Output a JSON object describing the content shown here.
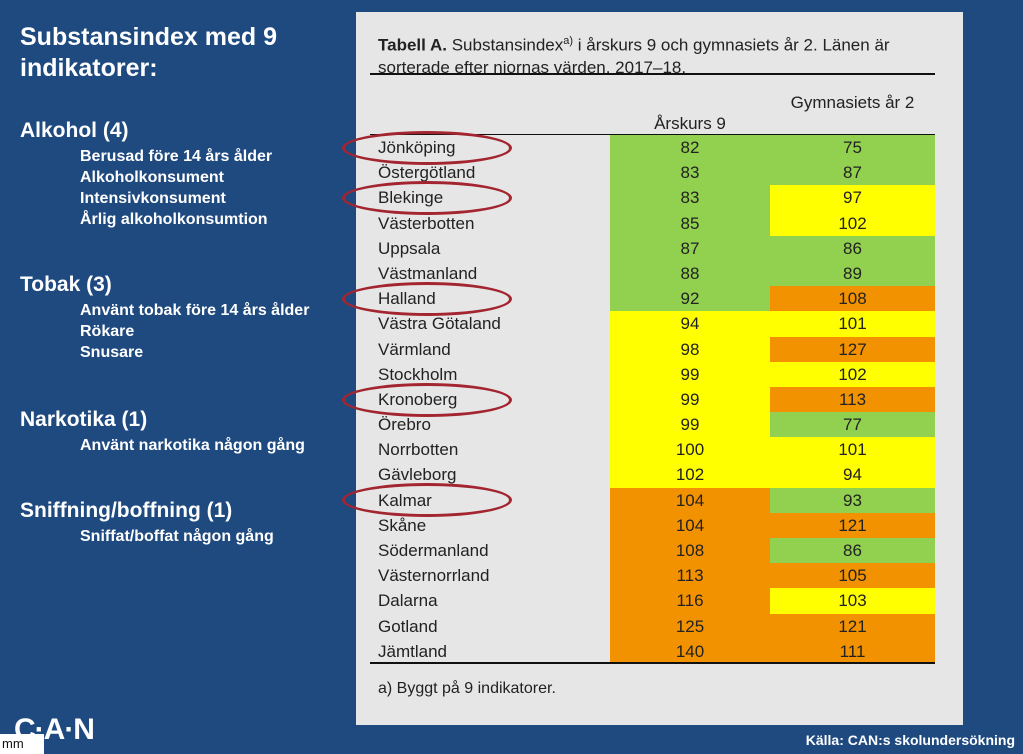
{
  "left": {
    "title": "Substansindex med 9 indikatorer:",
    "sections": [
      {
        "heading": "Alkohol (4)",
        "items": [
          "Berusad före 14 års ålder",
          "Alkoholkonsument",
          "Intensivkonsument",
          "Årlig alkoholkonsumtion"
        ]
      },
      {
        "heading": "Tobak (3)",
        "items": [
          "Använt tobak före 14 års ålder",
          "Rökare",
          "Snusare"
        ]
      },
      {
        "heading": "Narkotika (1)",
        "items": [
          "Använt narkotika någon gång"
        ]
      },
      {
        "heading": "Sniffning/boffning (1)",
        "items": [
          "Sniffat/boffat någon gång"
        ]
      }
    ]
  },
  "table": {
    "caption_bold": "Tabell A.",
    "caption_pre": "Substansindex",
    "caption_sup": "a)",
    "caption_post": " i årskurs 9 och gymnasiets år 2. Länen är sorterade efter niornas värden. 2017–18.",
    "col1_header": "Årskurs 9",
    "col2_header": "Gymnasiets år 2",
    "footnote": "a) Byggt på 9 indikatorer.",
    "colors": {
      "green": "#92d050",
      "yellow": "#ffff00",
      "orange": "#f39200"
    },
    "rows": [
      {
        "lan": "Jönköping",
        "ak9": "82",
        "gy2": "75",
        "c1": "green",
        "c2": "green",
        "circled": true
      },
      {
        "lan": "Östergötland",
        "ak9": "83",
        "gy2": "87",
        "c1": "green",
        "c2": "green",
        "circled": false
      },
      {
        "lan": "Blekinge",
        "ak9": "83",
        "gy2": "97",
        "c1": "green",
        "c2": "yellow",
        "circled": true
      },
      {
        "lan": "Västerbotten",
        "ak9": "85",
        "gy2": "102",
        "c1": "green",
        "c2": "yellow",
        "circled": false
      },
      {
        "lan": "Uppsala",
        "ak9": "87",
        "gy2": "86",
        "c1": "green",
        "c2": "green",
        "circled": false
      },
      {
        "lan": "Västmanland",
        "ak9": "88",
        "gy2": "89",
        "c1": "green",
        "c2": "green",
        "circled": false
      },
      {
        "lan": "Halland",
        "ak9": "92",
        "gy2": "108",
        "c1": "green",
        "c2": "orange",
        "circled": true
      },
      {
        "lan": "Västra Götaland",
        "ak9": "94",
        "gy2": "101",
        "c1": "yellow",
        "c2": "yellow",
        "circled": false
      },
      {
        "lan": "Värmland",
        "ak9": "98",
        "gy2": "127",
        "c1": "yellow",
        "c2": "orange",
        "circled": false
      },
      {
        "lan": "Stockholm",
        "ak9": "99",
        "gy2": "102",
        "c1": "yellow",
        "c2": "yellow",
        "circled": false
      },
      {
        "lan": "Kronoberg",
        "ak9": "99",
        "gy2": "113",
        "c1": "yellow",
        "c2": "orange",
        "circled": true
      },
      {
        "lan": "Örebro",
        "ak9": "99",
        "gy2": "77",
        "c1": "yellow",
        "c2": "green",
        "circled": false
      },
      {
        "lan": "Norrbotten",
        "ak9": "100",
        "gy2": "101",
        "c1": "yellow",
        "c2": "yellow",
        "circled": false
      },
      {
        "lan": "Gävleborg",
        "ak9": "102",
        "gy2": "94",
        "c1": "yellow",
        "c2": "yellow",
        "circled": false
      },
      {
        "lan": "Kalmar",
        "ak9": "104",
        "gy2": "93",
        "c1": "orange",
        "c2": "green",
        "circled": true
      },
      {
        "lan": "Skåne",
        "ak9": "104",
        "gy2": "121",
        "c1": "orange",
        "c2": "orange",
        "circled": false
      },
      {
        "lan": "Södermanland",
        "ak9": "108",
        "gy2": "86",
        "c1": "orange",
        "c2": "green",
        "circled": false
      },
      {
        "lan": "Västernorrland",
        "ak9": "113",
        "gy2": "105",
        "c1": "orange",
        "c2": "orange",
        "circled": false
      },
      {
        "lan": "Dalarna",
        "ak9": "116",
        "gy2": "103",
        "c1": "orange",
        "c2": "yellow",
        "circled": false
      },
      {
        "lan": "Gotland",
        "ak9": "125",
        "gy2": "121",
        "c1": "orange",
        "c2": "orange",
        "circled": false
      },
      {
        "lan": "Jämtland",
        "ak9": "140",
        "gy2": "111",
        "c1": "orange",
        "c2": "orange",
        "circled": false
      }
    ]
  },
  "logo": "C·A·N",
  "corner_label": "mm",
  "source": "Källa: CAN:s skolundersökning"
}
